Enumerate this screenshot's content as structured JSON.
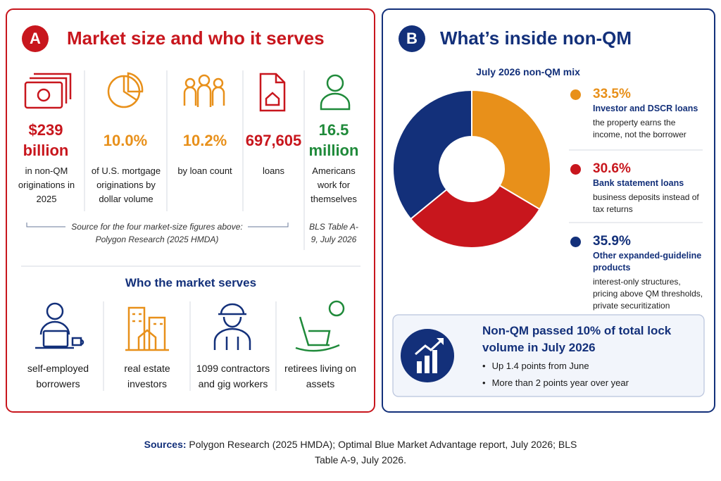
{
  "panel_a": {
    "badge": "A",
    "title": "Market size and who it serves",
    "stats": [
      {
        "figure": "$239 billion",
        "label": "in non-QM originations in 2025"
      },
      {
        "figure": "10.0%",
        "label": "of U.S. mortgage originations by dollar volume"
      },
      {
        "figure": "10.2%",
        "label": "by loan count"
      },
      {
        "figure": "697,605",
        "label": "loans"
      },
      {
        "figure": "16.5 million",
        "label": "Americans work for themselves"
      }
    ],
    "source_note": "Source for the four market-size figures above: Polygon Research (2025 HMDA)",
    "bls_note": "BLS Table A-9, July 2026",
    "serves_title": "Who the market serves",
    "serves": [
      "self-employed borrowers",
      "real estate investors",
      "1099 contractors and gig workers",
      "retirees living on assets"
    ]
  },
  "panel_b": {
    "badge": "B",
    "title": "What’s inside non-QM"
  },
  "chart_data": {
    "type": "pie",
    "title": "July 2026 non-QM mix",
    "categories": [
      "Investor and DSCR loans",
      "Bank statement loans",
      "Other expanded-guideline products"
    ],
    "values": [
      33.5,
      30.6,
      35.9
    ],
    "value_labels": [
      "33.5%",
      "30.6%",
      "35.9%"
    ],
    "colors": [
      "#e8901a",
      "#c8161d",
      "#13307a"
    ],
    "descriptions": [
      "the property earns the income, not the borrower",
      "business deposits instead of tax returns",
      "interest-only structures, pricing above QM thresholds, private securitization"
    ]
  },
  "callout": {
    "title": "Non-QM passed 10% of total lock volume in July 2026",
    "bullets": [
      "Up 1.4 points from June",
      "More than 2 points year over year"
    ]
  },
  "sources": {
    "label": "Sources:",
    "text": "Polygon Research (2025 HMDA); Optimal Blue Market Advantage report, July 2026; BLS Table A-9, July 2026."
  }
}
